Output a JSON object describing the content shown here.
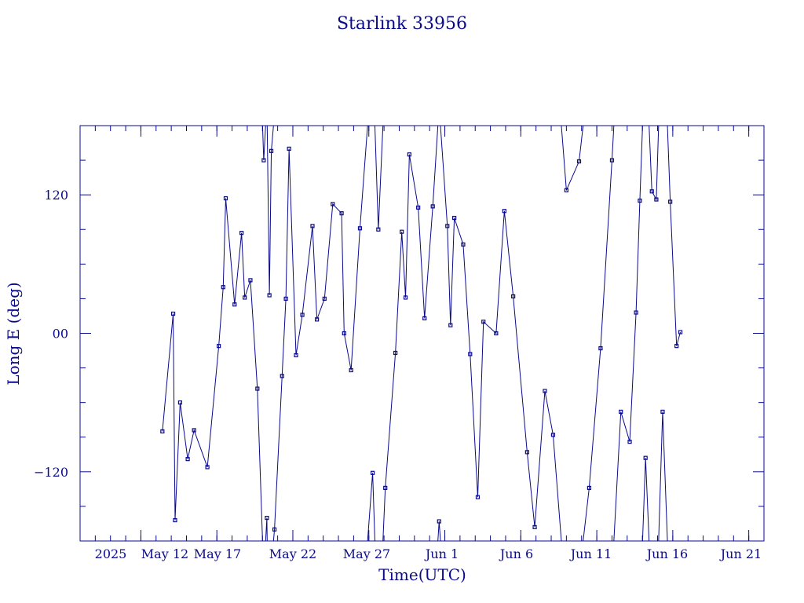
{
  "chart_data": {
    "type": "line",
    "title": "Starlink 33956",
    "xlabel": "Time(UTC)",
    "ylabel": "Long E (deg)",
    "x_ticks": [
      "2025",
      "May 12",
      "May 17",
      "May 22",
      "May 27",
      "Jun  1",
      "Jun  6",
      "Jun 11",
      "Jun 16",
      "Jun 21"
    ],
    "y_ticks": [
      "−120",
      "00",
      "120"
    ],
    "xlim": [
      "2025-05-08",
      "2025-06-22"
    ],
    "ylim": [
      -180,
      180
    ],
    "grid": false,
    "colors": {
      "axis": "#0a0a8c",
      "series": "#0a0a8c"
    },
    "series": [
      {
        "x": [
          "2025-05-13 10:00",
          "2025-05-14 03:00",
          "2025-05-14 06:00",
          "2025-05-14 14:00",
          "2025-05-15 02:00",
          "2025-05-15 12:00",
          "2025-05-16 09:00",
          "2025-05-17 03:00",
          "2025-05-17 10:00",
          "2025-05-17 14:00",
          "2025-05-18 04:00",
          "2025-05-18 15:00",
          "2025-05-18 20:00",
          "2025-05-19 05:00",
          "2025-05-19 16:00",
          "2025-05-20 02:00",
          "2025-05-20 07:00",
          "2025-05-20 11:00",
          "2025-05-20 14:00",
          "2025-05-20 19:00",
          "2025-05-21 07:00",
          "2025-05-21 13:00",
          "2025-05-21 18:00",
          "2025-05-22 05:00",
          "2025-05-22 15:00",
          "2025-05-23 07:00",
          "2025-05-23 14:00",
          "2025-05-24 02:00",
          "2025-05-24 15:00",
          "2025-05-25 05:00",
          "2025-05-25 09:00",
          "2025-05-25 20:00",
          "2025-05-26 10:00",
          "2025-05-27 06:00",
          "2025-05-27 15:00",
          "2025-05-28 02:00",
          "2025-05-28 18:00",
          "2025-05-29 04:00",
          "2025-05-29 10:00",
          "2025-05-29 16:00",
          "2025-05-30 06:00",
          "2025-05-30 16:00",
          "2025-05-31 05:00",
          "2025-05-31 15:00",
          "2025-06-01 04:00",
          "2025-06-01 09:00",
          "2025-06-01 15:00",
          "2025-06-02 05:00",
          "2025-06-02 16:00",
          "2025-06-03 04:00",
          "2025-06-03 13:00",
          "2025-06-04 09:00",
          "2025-06-04 22:00",
          "2025-06-05 12:00",
          "2025-06-06 10:00",
          "2025-06-06 22:00",
          "2025-06-07 14:00",
          "2025-06-08 03:00",
          "2025-06-09 00:00",
          "2025-06-09 20:00",
          "2025-06-10 12:00",
          "2025-06-11 06:00",
          "2025-06-12 00:00",
          "2025-06-12 14:00",
          "2025-06-13 04:00",
          "2025-06-13 14:00",
          "2025-06-13 20:00",
          "2025-06-14 05:00",
          "2025-06-14 15:00",
          "2025-06-14 22:00",
          "2025-06-15 08:00",
          "2025-06-15 20:00",
          "2025-06-16 06:00",
          "2025-06-16 12:00"
        ],
        "y": [
          -85,
          17,
          -162,
          -60,
          -109,
          -84,
          -116,
          -11,
          40,
          117,
          25,
          87,
          31,
          46,
          -48,
          150,
          -160,
          33,
          158,
          -170,
          -37,
          30,
          160,
          -19,
          16,
          93,
          12,
          30,
          112,
          104,
          0,
          -32,
          91,
          -121,
          90,
          -134,
          -17,
          88,
          31,
          155,
          109,
          13,
          110,
          -163,
          93,
          7,
          100,
          77,
          -18,
          -142,
          10,
          0,
          106,
          32,
          -103,
          -168,
          -50,
          -88,
          124,
          149,
          -134,
          -13,
          150,
          -68,
          -94,
          18,
          115,
          -108,
          123,
          116,
          -68,
          114,
          -11,
          1
        ]
      }
    ]
  }
}
